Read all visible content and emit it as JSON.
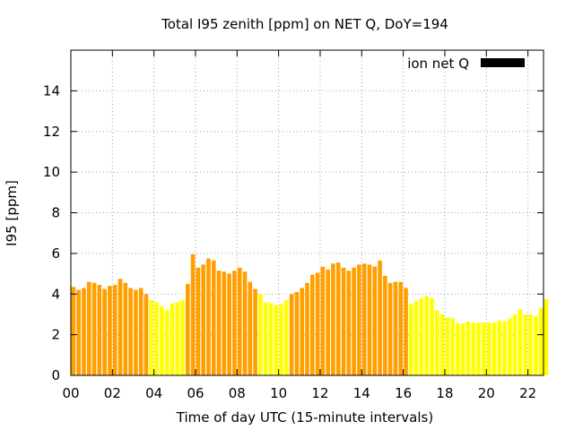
{
  "chart_data": {
    "type": "bar",
    "title": "Total I95 zenith [ppm] on NET Q, DoY=194",
    "xlabel": "Time of day UTC (15-minute intervals)",
    "ylabel": "I95 [ppm]",
    "xlim": [
      0,
      22.75
    ],
    "ylim": [
      0,
      16
    ],
    "x_ticks": [
      "00",
      "02",
      "04",
      "06",
      "08",
      "10",
      "12",
      "14",
      "16",
      "18",
      "20",
      "22"
    ],
    "y_ticks": [
      "0",
      "2",
      "4",
      "6",
      "8",
      "10",
      "12",
      "14"
    ],
    "grid": true,
    "legend_position": "top-right",
    "bin_hours": 0.25,
    "series": [
      {
        "name": "ion net Q",
        "legend_color": "#000000"
      }
    ],
    "colors": {
      "high": "#ff9f00",
      "low": "#ffff00"
    },
    "segments": [
      {
        "from": "00:00",
        "to": "03:45",
        "color": "high"
      },
      {
        "from": "03:45",
        "to": "05:30",
        "color": "low"
      },
      {
        "from": "05:30",
        "to": "09:00",
        "color": "high"
      },
      {
        "from": "09:00",
        "to": "10:30",
        "color": "low"
      },
      {
        "from": "10:30",
        "to": "16:15",
        "color": "high"
      },
      {
        "from": "16:15",
        "to": "22:45",
        "color": "low"
      }
    ],
    "values": [
      4.35,
      4.2,
      4.3,
      4.6,
      4.55,
      4.45,
      4.25,
      4.4,
      4.45,
      4.75,
      4.55,
      4.3,
      4.2,
      4.3,
      4.0,
      3.7,
      3.6,
      3.4,
      3.2,
      3.55,
      3.6,
      3.7,
      4.5,
      5.95,
      5.3,
      5.45,
      5.75,
      5.65,
      5.15,
      5.1,
      5.0,
      5.15,
      5.3,
      5.1,
      4.6,
      4.25,
      4.0,
      3.6,
      3.55,
      3.45,
      3.5,
      3.7,
      4.0,
      4.1,
      4.3,
      4.55,
      4.95,
      5.05,
      5.35,
      5.2,
      5.5,
      5.55,
      5.3,
      5.15,
      5.3,
      5.45,
      5.5,
      5.45,
      5.35,
      5.65,
      4.9,
      4.55,
      4.6,
      4.6,
      4.3,
      3.5,
      3.65,
      3.8,
      3.9,
      3.8,
      3.2,
      3.0,
      2.85,
      2.8,
      2.55,
      2.55,
      2.65,
      2.6,
      2.6,
      2.6,
      2.6,
      2.6,
      2.7,
      2.65,
      2.8,
      3.0,
      3.25,
      3.0,
      3.0,
      2.9,
      3.3,
      3.75
    ]
  }
}
